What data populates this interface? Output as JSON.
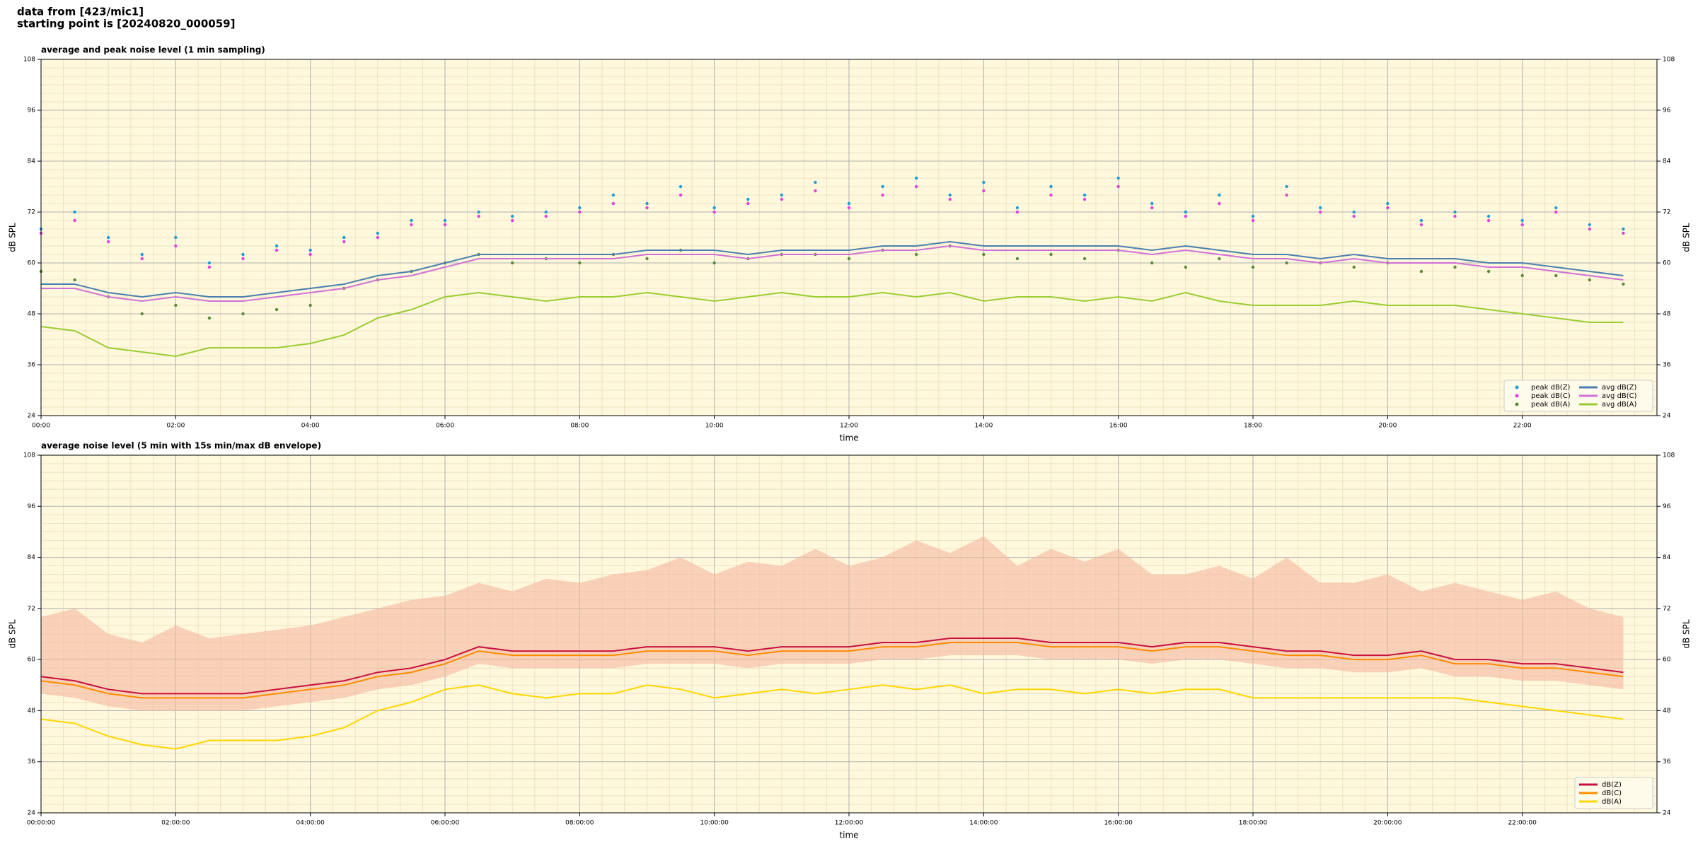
{
  "header": [
    "data from [423/mic1]",
    "starting point is [20240820_000059]"
  ],
  "chart_data": [
    {
      "type": "line",
      "title": "average and peak noise level (1 min sampling)",
      "xlabel": "time",
      "ylabel": "dB SPL",
      "y2label": "dB SPL",
      "x": [
        0,
        0.5,
        1,
        1.5,
        2,
        2.5,
        3,
        3.5,
        4,
        4.5,
        5,
        5.5,
        6,
        6.5,
        7,
        7.5,
        8,
        8.5,
        9,
        9.5,
        10,
        10.5,
        11,
        11.5,
        12,
        12.5,
        13,
        13.5,
        14,
        14.5,
        15,
        15.5,
        16,
        16.5,
        17,
        17.5,
        18,
        18.5,
        19,
        19.5,
        20,
        20.5,
        21,
        21.5,
        22,
        22.5,
        23,
        23.5
      ],
      "xlim": [
        0,
        24
      ],
      "xticks": [
        {
          "value": 0,
          "label": "00:00"
        },
        {
          "value": 2,
          "label": "02:00"
        },
        {
          "value": 4,
          "label": "04:00"
        },
        {
          "value": 6,
          "label": "06:00"
        },
        {
          "value": 8,
          "label": "08:00"
        },
        {
          "value": 10,
          "label": "10:00"
        },
        {
          "value": 12,
          "label": "12:00"
        },
        {
          "value": 14,
          "label": "14:00"
        },
        {
          "value": 16,
          "label": "16:00"
        },
        {
          "value": 18,
          "label": "18:00"
        },
        {
          "value": 20,
          "label": "20:00"
        },
        {
          "value": 22,
          "label": "22:00"
        }
      ],
      "ylim": [
        24,
        108
      ],
      "yticks": [
        24,
        36,
        48,
        60,
        72,
        84,
        96,
        108
      ],
      "y2lim": [
        24,
        108
      ],
      "y2ticks": [
        24,
        36,
        48,
        60,
        72,
        84,
        96,
        108
      ],
      "grid": true,
      "minor_grid": true,
      "legend": "lower right",
      "legend_columns": 2,
      "series": [
        {
          "name": "peak dB(Z)",
          "type": "scatter",
          "color": "#1f9bd8",
          "values": [
            68,
            72,
            66,
            62,
            66,
            60,
            62,
            64,
            63,
            66,
            67,
            70,
            70,
            72,
            71,
            72,
            73,
            76,
            74,
            78,
            73,
            75,
            76,
            79,
            74,
            78,
            80,
            76,
            79,
            73,
            78,
            76,
            80,
            74,
            72,
            76,
            71,
            78,
            73,
            72,
            74,
            70,
            72,
            71,
            70,
            73,
            69,
            68
          ]
        },
        {
          "name": "peak dB(C)",
          "type": "scatter",
          "color": "#e040e0",
          "values": [
            67,
            70,
            65,
            61,
            64,
            59,
            61,
            63,
            62,
            65,
            66,
            69,
            69,
            71,
            70,
            71,
            72,
            74,
            73,
            76,
            72,
            74,
            75,
            77,
            73,
            76,
            78,
            75,
            77,
            72,
            76,
            75,
            78,
            73,
            71,
            74,
            70,
            76,
            72,
            71,
            73,
            69,
            71,
            70,
            69,
            72,
            68,
            67
          ]
        },
        {
          "name": "peak dB(A)",
          "type": "scatter",
          "color": "#5a8a3a",
          "values": [
            58,
            56,
            52,
            48,
            50,
            47,
            48,
            49,
            50,
            54,
            56,
            58,
            60,
            62,
            60,
            61,
            60,
            62,
            61,
            63,
            60,
            61,
            62,
            62,
            61,
            63,
            62,
            64,
            62,
            61,
            62,
            61,
            63,
            60,
            59,
            61,
            59,
            60,
            60,
            59,
            60,
            58,
            59,
            58,
            57,
            57,
            56,
            55
          ]
        },
        {
          "name": "avg dB(Z)",
          "type": "line",
          "color": "#4a7fb0",
          "values": [
            55,
            55,
            53,
            52,
            53,
            52,
            52,
            53,
            54,
            55,
            57,
            58,
            60,
            62,
            62,
            62,
            62,
            62,
            63,
            63,
            63,
            62,
            63,
            63,
            63,
            64,
            64,
            65,
            64,
            64,
            64,
            64,
            64,
            63,
            64,
            63,
            62,
            62,
            61,
            62,
            61,
            61,
            61,
            60,
            60,
            59,
            58,
            57
          ]
        },
        {
          "name": "avg dB(C)",
          "type": "line",
          "color": "#d070d8",
          "values": [
            54,
            54,
            52,
            51,
            52,
            51,
            51,
            52,
            53,
            54,
            56,
            57,
            59,
            61,
            61,
            61,
            61,
            61,
            62,
            62,
            62,
            61,
            62,
            62,
            62,
            63,
            63,
            64,
            63,
            63,
            63,
            63,
            63,
            62,
            63,
            62,
            61,
            61,
            60,
            61,
            60,
            60,
            60,
            59,
            59,
            58,
            57,
            56
          ]
        },
        {
          "name": "avg dB(A)",
          "type": "line",
          "color": "#9acd32",
          "values": [
            45,
            44,
            40,
            39,
            38,
            40,
            40,
            40,
            41,
            43,
            47,
            49,
            52,
            53,
            52,
            51,
            52,
            52,
            53,
            52,
            51,
            52,
            53,
            52,
            52,
            53,
            52,
            53,
            51,
            52,
            52,
            51,
            52,
            51,
            53,
            51,
            50,
            50,
            50,
            51,
            50,
            50,
            50,
            49,
            48,
            47,
            46,
            46
          ]
        }
      ]
    },
    {
      "type": "line",
      "title": "average noise level (5 min with 15s min/max dB envelope)",
      "xlabel": "time",
      "ylabel": "dB SPL",
      "y2label": "dB SPL",
      "x": [
        0,
        0.5,
        1,
        1.5,
        2,
        2.5,
        3,
        3.5,
        4,
        4.5,
        5,
        5.5,
        6,
        6.5,
        7,
        7.5,
        8,
        8.5,
        9,
        9.5,
        10,
        10.5,
        11,
        11.5,
        12,
        12.5,
        13,
        13.5,
        14,
        14.5,
        15,
        15.5,
        16,
        16.5,
        17,
        17.5,
        18,
        18.5,
        19,
        19.5,
        20,
        20.5,
        21,
        21.5,
        22,
        22.5,
        23,
        23.5
      ],
      "xlim": [
        0,
        24
      ],
      "xticks": [
        {
          "value": 0,
          "label": "00:00:00"
        },
        {
          "value": 2,
          "label": "02:00:00"
        },
        {
          "value": 4,
          "label": "04:00:00"
        },
        {
          "value": 6,
          "label": "06:00:00"
        },
        {
          "value": 8,
          "label": "08:00:00"
        },
        {
          "value": 10,
          "label": "10:00:00"
        },
        {
          "value": 12,
          "label": "12:00:00"
        },
        {
          "value": 14,
          "label": "14:00:00"
        },
        {
          "value": 16,
          "label": "16:00:00"
        },
        {
          "value": 18,
          "label": "18:00:00"
        },
        {
          "value": 20,
          "label": "20:00:00"
        },
        {
          "value": 22,
          "label": "22:00:00"
        }
      ],
      "ylim": [
        24,
        108
      ],
      "yticks": [
        24,
        36,
        48,
        60,
        72,
        84,
        96,
        108
      ],
      "y2lim": [
        24,
        108
      ],
      "y2ticks": [
        24,
        36,
        48,
        60,
        72,
        84,
        96,
        108
      ],
      "grid": true,
      "minor_grid": true,
      "legend": "lower right",
      "legend_columns": 1,
      "band": {
        "color": "#f5b8a0",
        "lower": [
          52,
          51,
          49,
          48,
          48,
          48,
          48,
          49,
          50,
          51,
          53,
          54,
          56,
          59,
          58,
          58,
          58,
          58,
          59,
          59,
          59,
          58,
          59,
          59,
          59,
          60,
          60,
          61,
          61,
          61,
          60,
          60,
          60,
          59,
          60,
          60,
          59,
          58,
          58,
          57,
          57,
          58,
          56,
          56,
          55,
          55,
          54,
          53
        ],
        "upper": [
          70,
          72,
          66,
          64,
          68,
          65,
          66,
          67,
          68,
          70,
          72,
          74,
          75,
          78,
          76,
          79,
          78,
          80,
          81,
          84,
          80,
          83,
          82,
          86,
          82,
          84,
          88,
          85,
          89,
          82,
          86,
          83,
          86,
          80,
          80,
          82,
          79,
          84,
          78,
          78,
          80,
          76,
          78,
          76,
          74,
          76,
          72,
          70
        ]
      },
      "series": [
        {
          "name": "dB(Z)",
          "type": "line",
          "color": "#c8103c",
          "values": [
            56,
            55,
            53,
            52,
            52,
            52,
            52,
            53,
            54,
            55,
            57,
            58,
            60,
            63,
            62,
            62,
            62,
            62,
            63,
            63,
            63,
            62,
            63,
            63,
            63,
            64,
            64,
            65,
            65,
            65,
            64,
            64,
            64,
            63,
            64,
            64,
            63,
            62,
            62,
            61,
            61,
            62,
            60,
            60,
            59,
            59,
            58,
            57
          ]
        },
        {
          "name": "dB(C)",
          "type": "line",
          "color": "#ff8c00",
          "values": [
            55,
            54,
            52,
            51,
            51,
            51,
            51,
            52,
            53,
            54,
            56,
            57,
            59,
            62,
            61,
            61,
            61,
            61,
            62,
            62,
            62,
            61,
            62,
            62,
            62,
            63,
            63,
            64,
            64,
            64,
            63,
            63,
            63,
            62,
            63,
            63,
            62,
            61,
            61,
            60,
            60,
            61,
            59,
            59,
            58,
            58,
            57,
            56
          ]
        },
        {
          "name": "dB(A)",
          "type": "line",
          "color": "#ffd700",
          "values": [
            46,
            45,
            42,
            40,
            39,
            41,
            41,
            41,
            42,
            44,
            48,
            50,
            53,
            54,
            52,
            51,
            52,
            52,
            54,
            53,
            51,
            52,
            53,
            52,
            53,
            54,
            53,
            54,
            52,
            53,
            53,
            52,
            53,
            52,
            53,
            53,
            51,
            51,
            51,
            51,
            51,
            51,
            51,
            50,
            49,
            48,
            47,
            46
          ]
        }
      ]
    }
  ]
}
